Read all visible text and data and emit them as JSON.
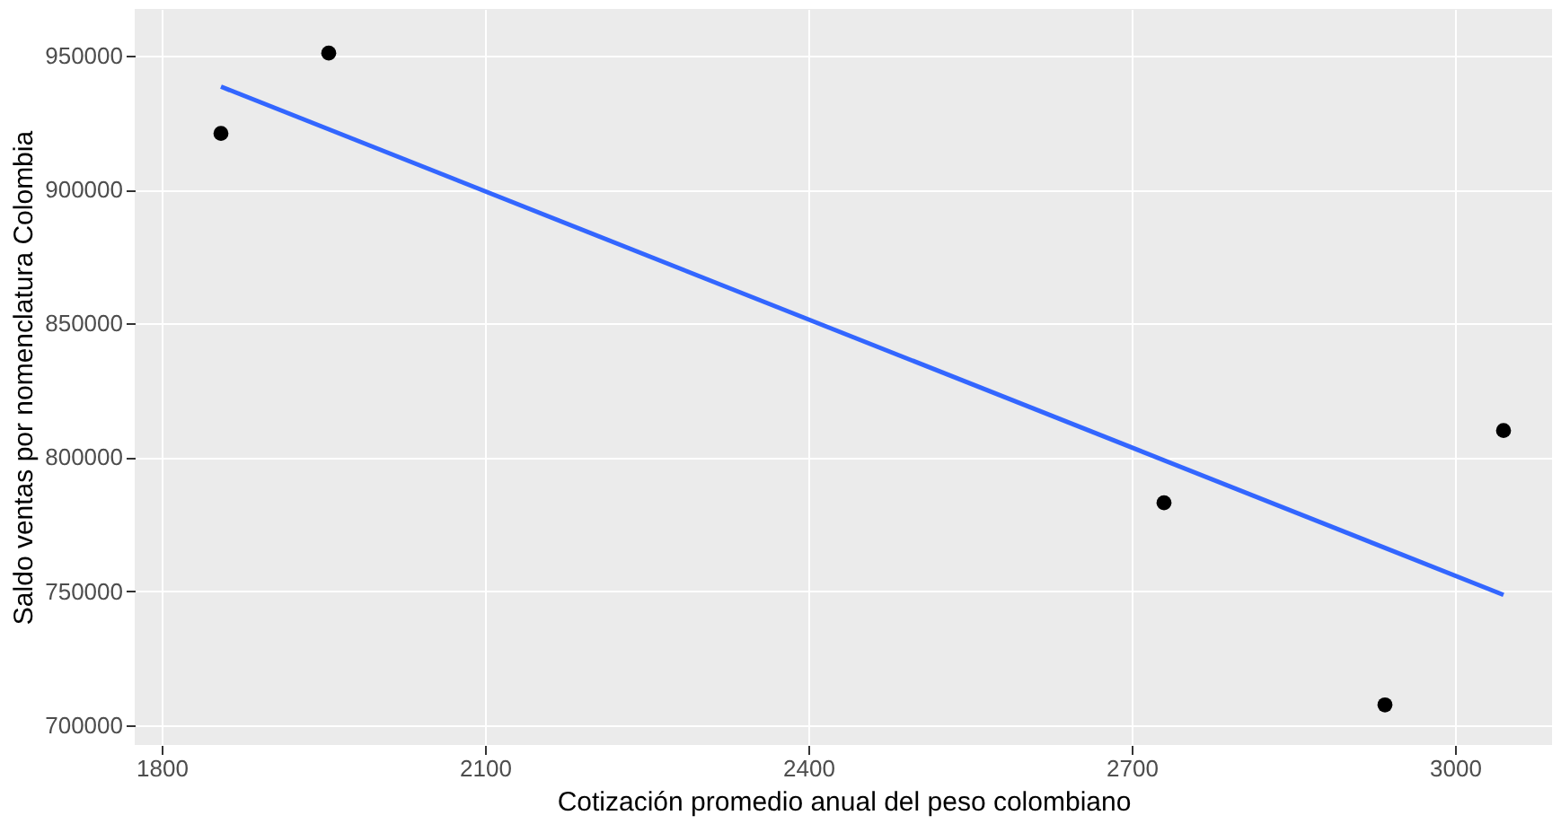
{
  "chart_data": {
    "type": "scatter",
    "xlabel": "Cotización promedio anual del  peso colombiano",
    "ylabel": "Saldo ventas por nomenclatura  Colombia",
    "series": [
      {
        "color": "#000000",
        "marker": "circle",
        "x": [
          1855,
          1955,
          2730,
          2935,
          3045
        ],
        "values": [
          921000,
          951000,
          783000,
          707500,
          810000
        ]
      },
      {
        "type": "line",
        "marker": "none",
        "color": "#3366ff",
        "x": [
          1855,
          3045
        ],
        "values": [
          938500,
          748600
        ]
      }
    ],
    "xlim": [
      1775,
      3090
    ],
    "ylim": [
      692500,
      967500
    ],
    "xticks": [
      1800,
      2100,
      2400,
      2700,
      3000
    ],
    "yticks": [
      700000,
      750000,
      800000,
      850000,
      900000,
      950000
    ],
    "grid": true
  }
}
